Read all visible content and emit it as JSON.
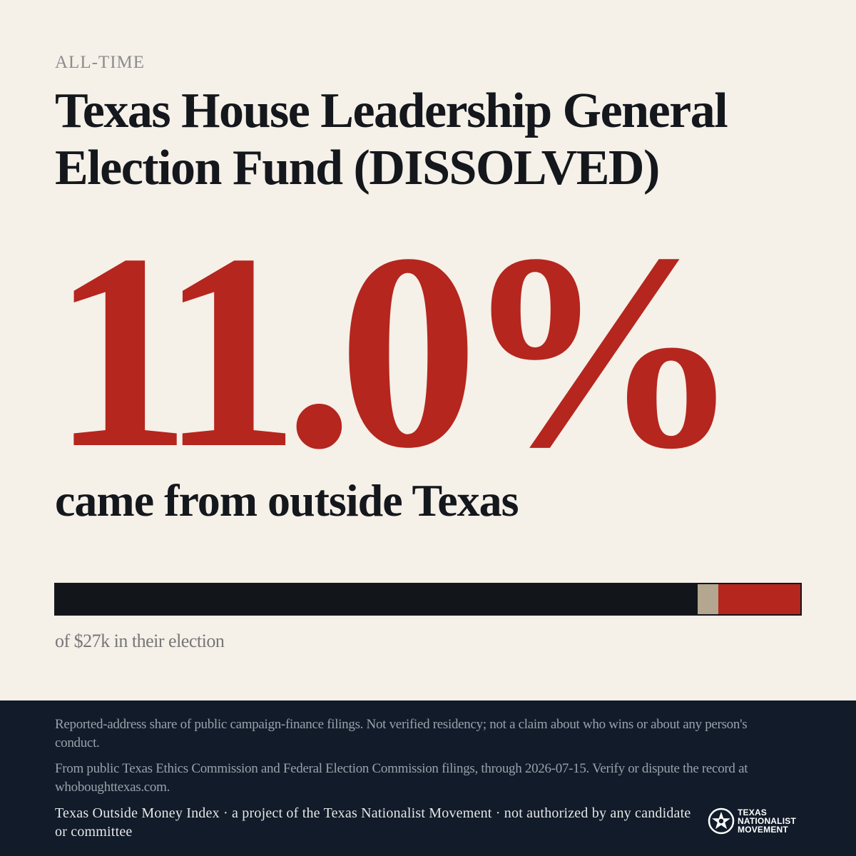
{
  "eyebrow": "ALL-TIME",
  "title": "Texas House Leadership General Election Fund (DISSOLVED)",
  "headline_value": "11.0%",
  "subtitle": "came from outside Texas",
  "bar": {
    "segments": [
      {
        "name": "texas",
        "fraction": 0.862,
        "color": "#121519"
      },
      {
        "name": "unknown",
        "fraction": 0.028,
        "color": "#b3a78f"
      },
      {
        "name": "outside",
        "fraction": 0.11,
        "color": "#b5261e"
      }
    ]
  },
  "caption": "of $27k in their election",
  "footer": {
    "note1": "Reported-address share of public campaign-finance filings. Not verified residency; not a claim about who wins or about any person's conduct.",
    "note2": "From public Texas Ethics Commission and Federal Election Commission filings, through 2026-07-15. Verify or dispute the record at whoboughttexas.com.",
    "credit": "Texas Outside Money Index · a project of the Texas Nationalist Movement · not authorized by any candidate or committee",
    "logo_lines": [
      "TEXAS",
      "NATIONALIST",
      "MOVEMENT"
    ]
  },
  "colors": {
    "accent": "#b5261e",
    "ink": "#14171c",
    "background": "#f5f0e8",
    "footer": "#111b29"
  }
}
